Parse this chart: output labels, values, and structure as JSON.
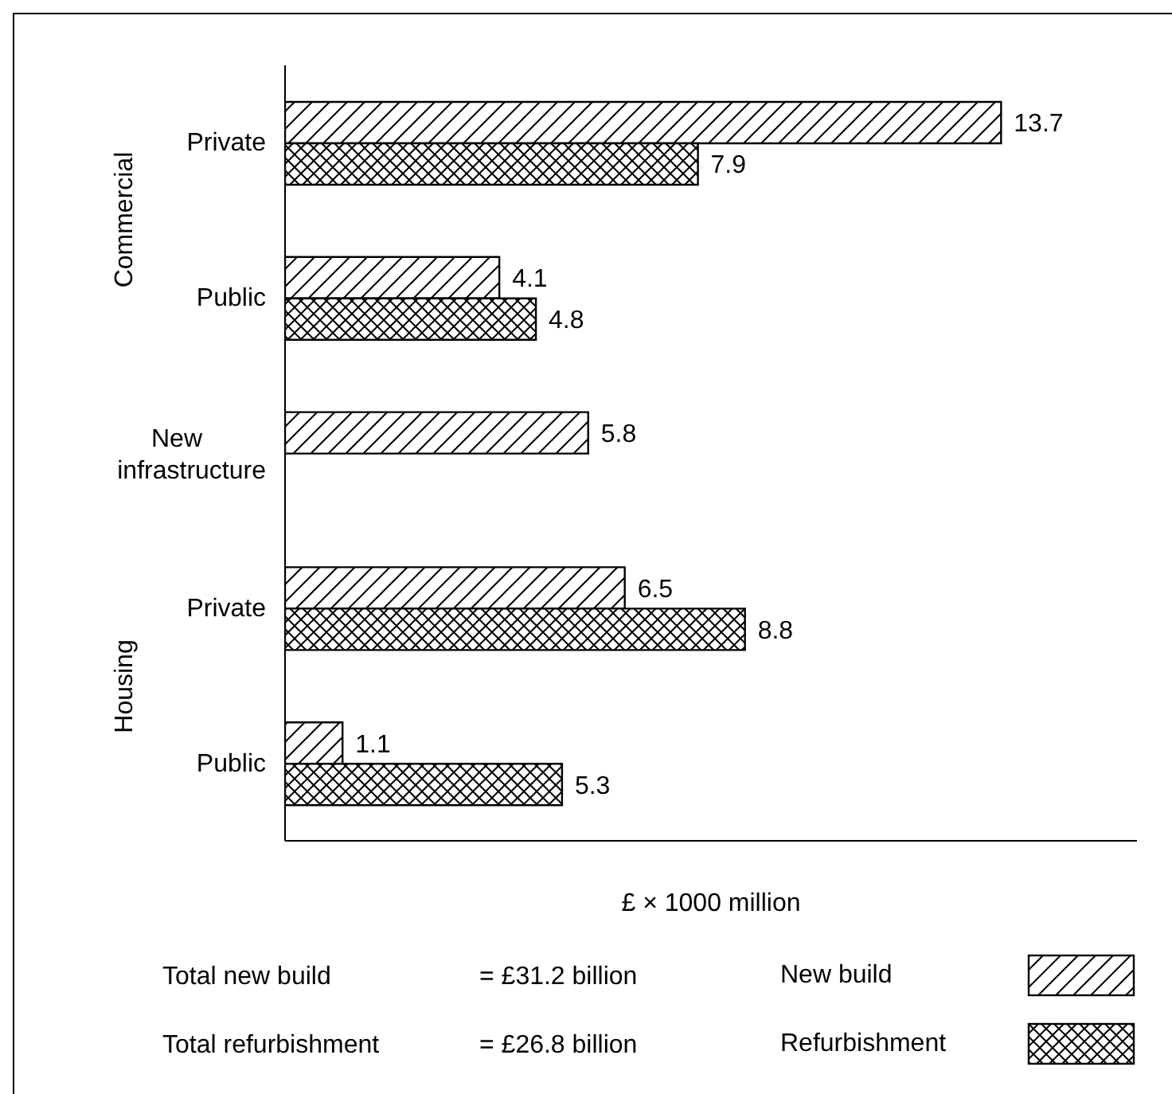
{
  "chart_data": {
    "type": "bar",
    "orientation": "horizontal",
    "xlabel": "£ × 1000 million",
    "categories": [
      "Private",
      "Public",
      "New infrastructure",
      "Private",
      "Public"
    ],
    "series": [
      {
        "name": "New build",
        "color": "#000000",
        "values": [
          13.7,
          4.1,
          5.8,
          6.5,
          1.1
        ]
      },
      {
        "name": "Refurbishment",
        "color": "#000000",
        "values": [
          7.9,
          4.8,
          null,
          8.8,
          5.3
        ]
      }
    ],
    "xlim": [
      0,
      16.3
    ],
    "data_labels": true,
    "legend": "bottom",
    "grid": false,
    "annotations": [
      "Commercial",
      "Housing",
      "Total new build",
      "= £31.2 billion",
      "Total refurbishment",
      "= £26.8 billion"
    ]
  }
}
